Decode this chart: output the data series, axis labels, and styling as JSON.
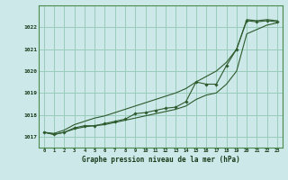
{
  "xlabel": "Graphe pression niveau de la mer (hPa)",
  "background_color": "#cce8e8",
  "grid_color": "#99ccbb",
  "line_color": "#2d5a2d",
  "xlim": [
    -0.5,
    23.5
  ],
  "ylim": [
    1016.5,
    1023.0
  ],
  "yticks": [
    1017,
    1018,
    1019,
    1020,
    1021,
    1022
  ],
  "xticks": [
    0,
    1,
    2,
    3,
    4,
    5,
    6,
    7,
    8,
    9,
    10,
    11,
    12,
    13,
    14,
    15,
    16,
    17,
    18,
    19,
    20,
    21,
    22,
    23
  ],
  "series_main": [
    1017.2,
    1017.1,
    1017.2,
    1017.4,
    1017.5,
    1017.5,
    1017.6,
    1017.7,
    1017.8,
    1018.05,
    1018.1,
    1018.2,
    1018.3,
    1018.35,
    1018.6,
    1019.5,
    1019.4,
    1019.4,
    1020.25,
    1021.0,
    1022.3,
    1022.25,
    1022.3,
    1022.25
  ],
  "series_upper": [
    1017.2,
    1017.15,
    1017.3,
    1017.55,
    1017.7,
    1017.85,
    1017.95,
    1018.1,
    1018.25,
    1018.4,
    1018.55,
    1018.7,
    1018.85,
    1019.0,
    1019.2,
    1019.5,
    1019.75,
    1020.0,
    1020.4,
    1021.0,
    1022.35,
    1022.3,
    1022.35,
    1022.3
  ],
  "series_lower": [
    1017.2,
    1017.1,
    1017.2,
    1017.35,
    1017.45,
    1017.5,
    1017.55,
    1017.65,
    1017.75,
    1017.85,
    1017.95,
    1018.05,
    1018.15,
    1018.25,
    1018.4,
    1018.7,
    1018.9,
    1019.0,
    1019.4,
    1020.0,
    1021.7,
    1021.9,
    1022.1,
    1022.2
  ]
}
